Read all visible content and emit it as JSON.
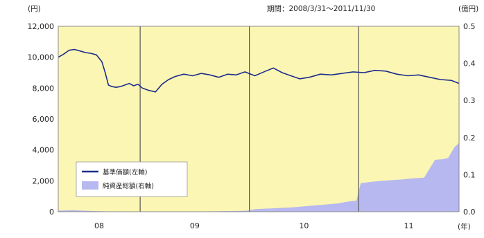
{
  "chart_data": {
    "type": "line",
    "title": "",
    "period_label": "期間：2008/3/31～2011/11/30",
    "left_unit": "(円)",
    "right_unit": "(億円)",
    "x_unit": "(年)",
    "categories": [
      "08",
      "09",
      "10",
      "11"
    ],
    "y_left": {
      "min": 0,
      "max": 12000,
      "ticks": [
        "0",
        "2,000",
        "4,000",
        "6,000",
        "8,000",
        "10,000",
        "12,000"
      ]
    },
    "y_right": {
      "min": 0,
      "max": 0.5,
      "ticks": [
        "0.0",
        "0.1",
        "0.2",
        "0.3",
        "0.4",
        "0.5"
      ]
    },
    "x_range": [
      2008.25,
      2011.92
    ],
    "year_boundaries": [
      2009.0,
      2010.0,
      2011.0
    ],
    "grid": false,
    "legend_position": "lower-left",
    "colors": {
      "plot_bg": "#fbf6b3",
      "nav_line": "#1c2c8c",
      "assets_fill": "#b8b8f0",
      "boundary": "#555555"
    },
    "series": [
      {
        "name": "基準価額(左軸)",
        "axis": "left",
        "x": [
          2008.25,
          2008.3,
          2008.35,
          2008.4,
          2008.45,
          2008.5,
          2008.55,
          2008.6,
          2008.65,
          2008.68,
          2008.71,
          2008.74,
          2008.78,
          2008.82,
          2008.86,
          2008.9,
          2008.94,
          2008.98,
          2009.02,
          2009.08,
          2009.14,
          2009.2,
          2009.26,
          2009.32,
          2009.4,
          2009.48,
          2009.56,
          2009.64,
          2009.72,
          2009.8,
          2009.88,
          2009.96,
          2010.05,
          2010.15,
          2010.22,
          2010.3,
          2010.38,
          2010.46,
          2010.55,
          2010.65,
          2010.75,
          2010.85,
          2010.95,
          2011.05,
          2011.15,
          2011.25,
          2011.35,
          2011.45,
          2011.55,
          2011.65,
          2011.75,
          2011.85,
          2011.92
        ],
        "values": [
          10000,
          10200,
          10450,
          10500,
          10400,
          10300,
          10250,
          10150,
          9700,
          9000,
          8200,
          8100,
          8050,
          8100,
          8200,
          8300,
          8150,
          8250,
          8000,
          7850,
          7750,
          8250,
          8550,
          8750,
          8900,
          8800,
          8950,
          8850,
          8700,
          8900,
          8850,
          9050,
          8800,
          9100,
          9300,
          9000,
          8800,
          8600,
          8700,
          8900,
          8850,
          8950,
          9050,
          9000,
          9150,
          9100,
          8900,
          8800,
          8850,
          8700,
          8550,
          8500,
          8300
        ]
      },
      {
        "name": "純資産総額(右軸)",
        "axis": "right",
        "x": [
          2008.25,
          2008.4,
          2008.46,
          2008.55,
          2008.7,
          2009.0,
          2009.3,
          2009.6,
          2009.9,
          2009.99,
          2010.05,
          2010.2,
          2010.4,
          2010.6,
          2010.8,
          2010.9,
          2010.98,
          2011.02,
          2011.1,
          2011.2,
          2011.3,
          2011.4,
          2011.5,
          2011.6,
          2011.7,
          2011.78,
          2011.82,
          2011.88,
          2011.92
        ],
        "values": [
          0.003,
          0.004,
          0.003,
          0.002,
          0.001,
          0.001,
          0.001,
          0.001,
          0.002,
          0.003,
          0.007,
          0.009,
          0.012,
          0.017,
          0.022,
          0.027,
          0.03,
          0.077,
          0.08,
          0.083,
          0.085,
          0.087,
          0.09,
          0.092,
          0.14,
          0.142,
          0.145,
          0.175,
          0.185
        ]
      }
    ]
  }
}
